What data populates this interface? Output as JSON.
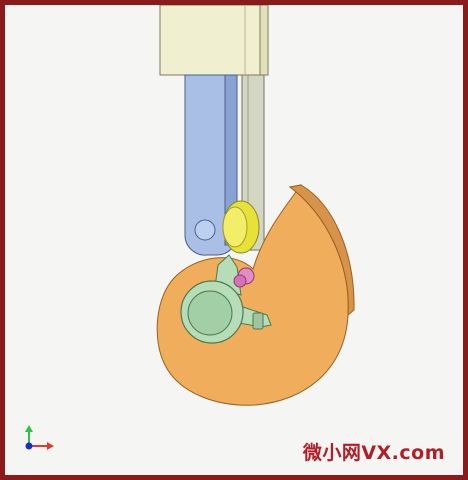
{
  "watermark": {
    "text": "微小网VX.com"
  },
  "colors": {
    "frame_border": "#8b1a1a",
    "background": "#f5f5f3",
    "top_block": "#f0efcf",
    "guide_rail": "#d3d6c2",
    "follower_arm": "#a9bfe6",
    "roller": "#e7e23a",
    "cam": "#f0ad5c",
    "cam_hub": "#b6dcb8",
    "pin": "#e48cc6",
    "axis_x": "#e23b2e",
    "axis_y": "#2ec24a",
    "axis_origin": "#1b2cc8",
    "watermark": "#b01e28"
  },
  "icons": {
    "axis_triad": "xyz-axis-triad-icon"
  }
}
